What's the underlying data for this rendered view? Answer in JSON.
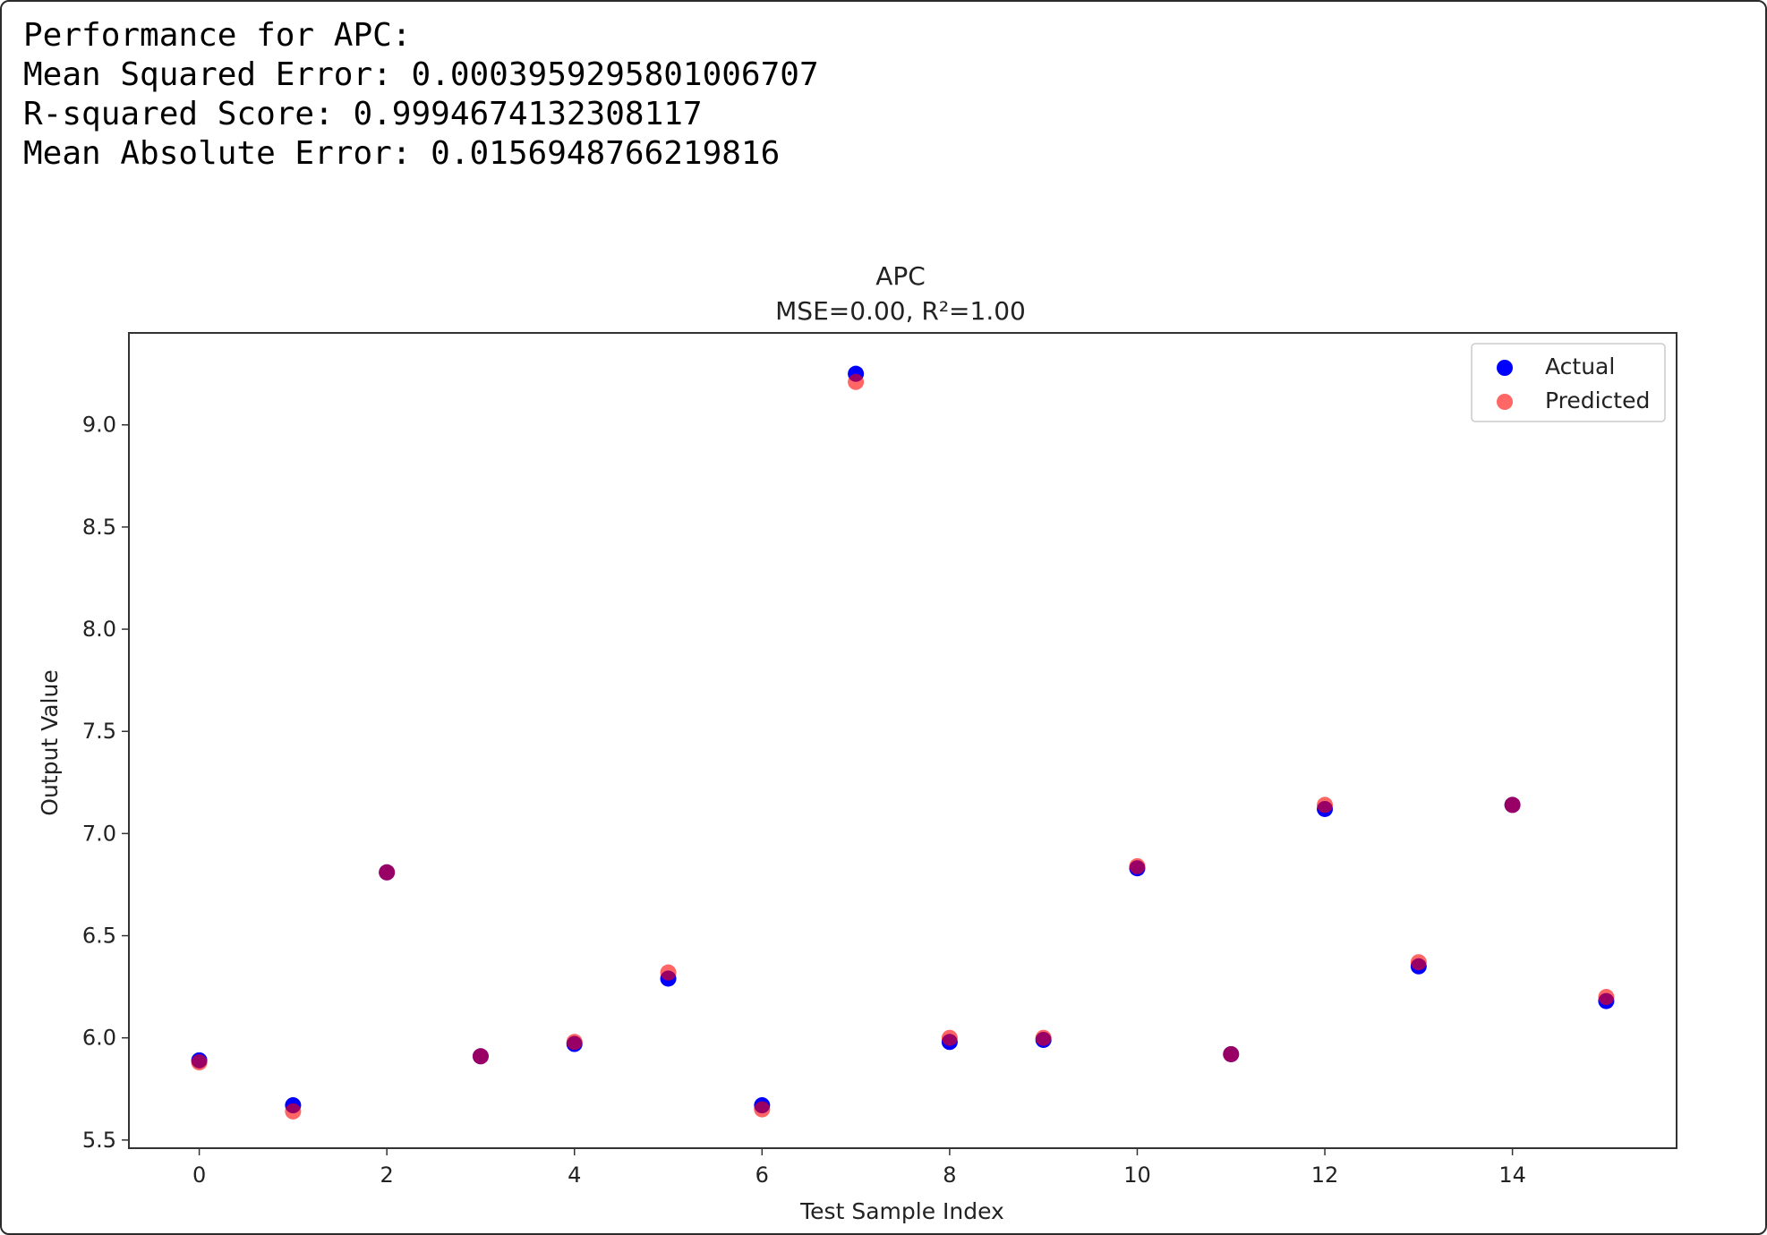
{
  "output_text": {
    "line1": "Performance for APC:",
    "line2": "Mean Squared Error: 0.0003959295801006707",
    "line3": "R-squared Score: 0.9994674132308117",
    "line4": "Mean Absolute Error: 0.0156948766219816"
  },
  "chart_data": {
    "type": "scatter",
    "title": "APC",
    "subtitle": "MSE=0.00, R²=1.00",
    "xlabel": "Test Sample Index",
    "ylabel": "Output Value",
    "xlim": [
      -0.75,
      15.75
    ],
    "ylim": [
      5.46,
      9.45
    ],
    "xticks": [
      0,
      2,
      4,
      6,
      8,
      10,
      12,
      14
    ],
    "xtick_labels": [
      "0",
      "2",
      "4",
      "6",
      "8",
      "10",
      "12",
      "14"
    ],
    "yticks": [
      5.5,
      6.0,
      6.5,
      7.0,
      7.5,
      8.0,
      8.5,
      9.0
    ],
    "ytick_labels": [
      "5.5",
      "6.0",
      "6.5",
      "7.0",
      "7.5",
      "8.0",
      "8.5",
      "9.0"
    ],
    "grid": false,
    "legend_position": "top-right",
    "x": [
      0,
      1,
      2,
      3,
      4,
      5,
      6,
      7,
      8,
      9,
      10,
      11,
      12,
      13,
      14,
      15
    ],
    "series": [
      {
        "name": "Actual",
        "color": "#0000ff",
        "alpha": 1.0,
        "values": [
          5.89,
          5.67,
          6.81,
          5.91,
          5.97,
          6.29,
          5.67,
          9.25,
          5.98,
          5.99,
          6.83,
          5.92,
          7.12,
          6.35,
          7.14,
          6.18
        ]
      },
      {
        "name": "Predicted",
        "color": "#ff0000",
        "alpha": 0.6,
        "values": [
          5.88,
          5.64,
          6.81,
          5.91,
          5.98,
          6.32,
          5.65,
          9.21,
          6.0,
          6.0,
          6.84,
          5.92,
          7.14,
          6.37,
          7.14,
          6.2
        ]
      }
    ]
  }
}
